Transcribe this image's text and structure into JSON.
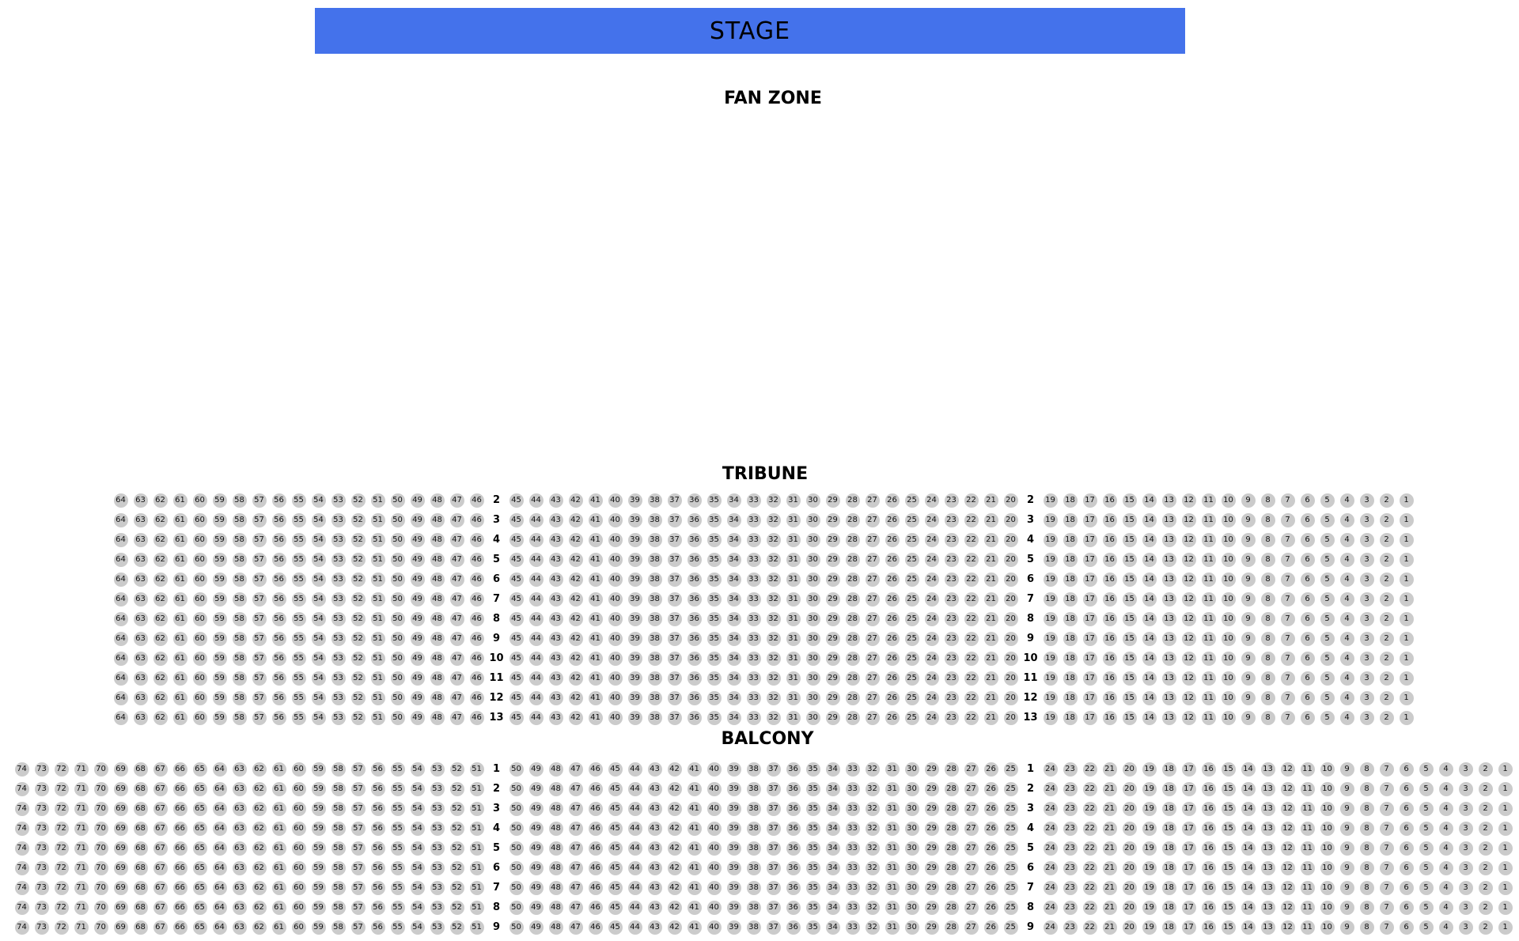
{
  "stage": {
    "label": "STAGE",
    "color": "#4472EB",
    "text_color": "#000000"
  },
  "fan_zone": {
    "label": "FAN ZONE"
  },
  "seat_style": {
    "fill": "#cbcbcb",
    "text": "#111111"
  },
  "sections": [
    {
      "id": "tribune",
      "label": "TRIBUNE",
      "row_numbers": [
        2,
        3,
        4,
        5,
        6,
        7,
        8,
        9,
        10,
        11,
        12,
        13
      ],
      "seat_blocks": [
        {
          "start": 64,
          "end": 46
        },
        {
          "start": 45,
          "end": 20
        },
        {
          "start": 19,
          "end": 1
        }
      ]
    },
    {
      "id": "balcony",
      "label": "BALCONY",
      "row_numbers": [
        1,
        2,
        3,
        4,
        5,
        6,
        7,
        8,
        9
      ],
      "seat_blocks": [
        {
          "start": 74,
          "end": 51
        },
        {
          "start": 50,
          "end": 25
        },
        {
          "start": 24,
          "end": 1
        }
      ]
    }
  ]
}
